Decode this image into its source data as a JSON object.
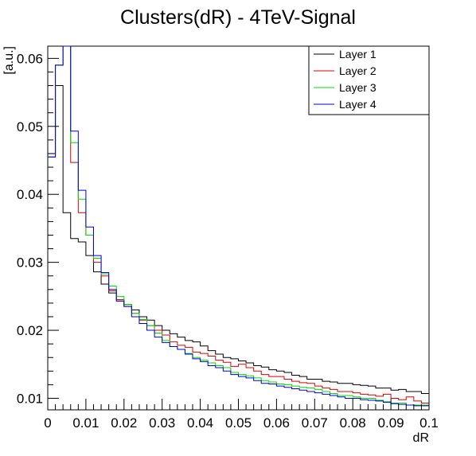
{
  "chart_data": {
    "type": "line",
    "title": "Clusters(dR) - 4TeV-Signal",
    "xlabel": "dR",
    "ylabel": "[a.u.]",
    "xlim": [
      0,
      0.1
    ],
    "ylim": [
      0.0083,
      0.0618
    ],
    "x_ticks": [
      0,
      0.01,
      0.02,
      0.03,
      0.04,
      0.05,
      0.06,
      0.07,
      0.08,
      0.09,
      0.1
    ],
    "x_tick_labels": [
      "0",
      "0.01",
      "0.02",
      "0.03",
      "0.04",
      "0.05",
      "0.06",
      "0.07",
      "0.08",
      "0.09",
      "0.1"
    ],
    "y_ticks": [
      0.01,
      0.02,
      0.03,
      0.04,
      0.05,
      0.06
    ],
    "y_tick_labels": [
      "0.01",
      "0.02",
      "0.03",
      "0.04",
      "0.05",
      "0.06"
    ],
    "bin_width": 0.002,
    "legend_position": "top-right",
    "series": [
      {
        "name": "Layer 1",
        "color": "#000000",
        "values": [
          0.046,
          0.056,
          0.0373,
          0.0335,
          0.033,
          0.031,
          0.0286,
          0.0268,
          0.0255,
          0.0245,
          0.0238,
          0.023,
          0.022,
          0.0215,
          0.0207,
          0.02,
          0.0195,
          0.019,
          0.0185,
          0.0183,
          0.0177,
          0.017,
          0.0165,
          0.016,
          0.0158,
          0.0155,
          0.0152,
          0.0148,
          0.0146,
          0.0142,
          0.014,
          0.0138,
          0.0134,
          0.0132,
          0.0128,
          0.0128,
          0.0125,
          0.0124,
          0.0122,
          0.0122,
          0.012,
          0.0119,
          0.0118,
          0.0115,
          0.0115,
          0.0112,
          0.0113,
          0.011,
          0.011,
          0.0107
        ]
      },
      {
        "name": "Layer 2",
        "color": "#dd0000",
        "values": [
          0.0455,
          0.059,
          0.0618,
          0.0447,
          0.0373,
          0.034,
          0.03,
          0.028,
          0.0258,
          0.0245,
          0.0235,
          0.0225,
          0.0215,
          0.0207,
          0.02,
          0.0193,
          0.0183,
          0.0178,
          0.0175,
          0.0168,
          0.0166,
          0.0162,
          0.0156,
          0.0153,
          0.0147,
          0.015,
          0.0145,
          0.014,
          0.0135,
          0.0132,
          0.0132,
          0.0128,
          0.0125,
          0.0123,
          0.0122,
          0.0118,
          0.0115,
          0.0113,
          0.011,
          0.011,
          0.0108,
          0.0106,
          0.0105,
          0.0103,
          0.0106,
          0.01,
          0.0098,
          0.0102,
          0.0096,
          0.0093
        ]
      },
      {
        "name": "Layer 3",
        "color": "#00dd00",
        "values": [
          0.0455,
          0.059,
          0.0618,
          0.0476,
          0.0393,
          0.034,
          0.0306,
          0.0283,
          0.0265,
          0.025,
          0.0238,
          0.0225,
          0.0216,
          0.0207,
          0.0196,
          0.0185,
          0.0176,
          0.0172,
          0.0166,
          0.016,
          0.0156,
          0.0152,
          0.0148,
          0.0145,
          0.0138,
          0.0135,
          0.0133,
          0.013,
          0.0126,
          0.0124,
          0.0121,
          0.012,
          0.0118,
          0.0116,
          0.0115,
          0.0113,
          0.011,
          0.0107,
          0.0104,
          0.0104,
          0.0102,
          0.01,
          0.01,
          0.0097,
          0.0095,
          0.0093,
          0.0093,
          0.009,
          0.009,
          0.009
        ]
      },
      {
        "name": "Layer 4",
        "color": "#0000dd",
        "values": [
          0.0455,
          0.059,
          0.0618,
          0.0493,
          0.0406,
          0.0352,
          0.031,
          0.0285,
          0.026,
          0.0243,
          0.0235,
          0.022,
          0.021,
          0.02,
          0.019,
          0.0182,
          0.0176,
          0.0172,
          0.0165,
          0.0158,
          0.0154,
          0.0148,
          0.0145,
          0.014,
          0.0135,
          0.0132,
          0.013,
          0.0126,
          0.0122,
          0.0121,
          0.0118,
          0.0116,
          0.0114,
          0.0112,
          0.011,
          0.0108,
          0.0106,
          0.0104,
          0.0102,
          0.01,
          0.01,
          0.0098,
          0.0097,
          0.0096,
          0.0094,
          0.0092,
          0.0091,
          0.009,
          0.0089,
          0.0089
        ]
      }
    ]
  }
}
